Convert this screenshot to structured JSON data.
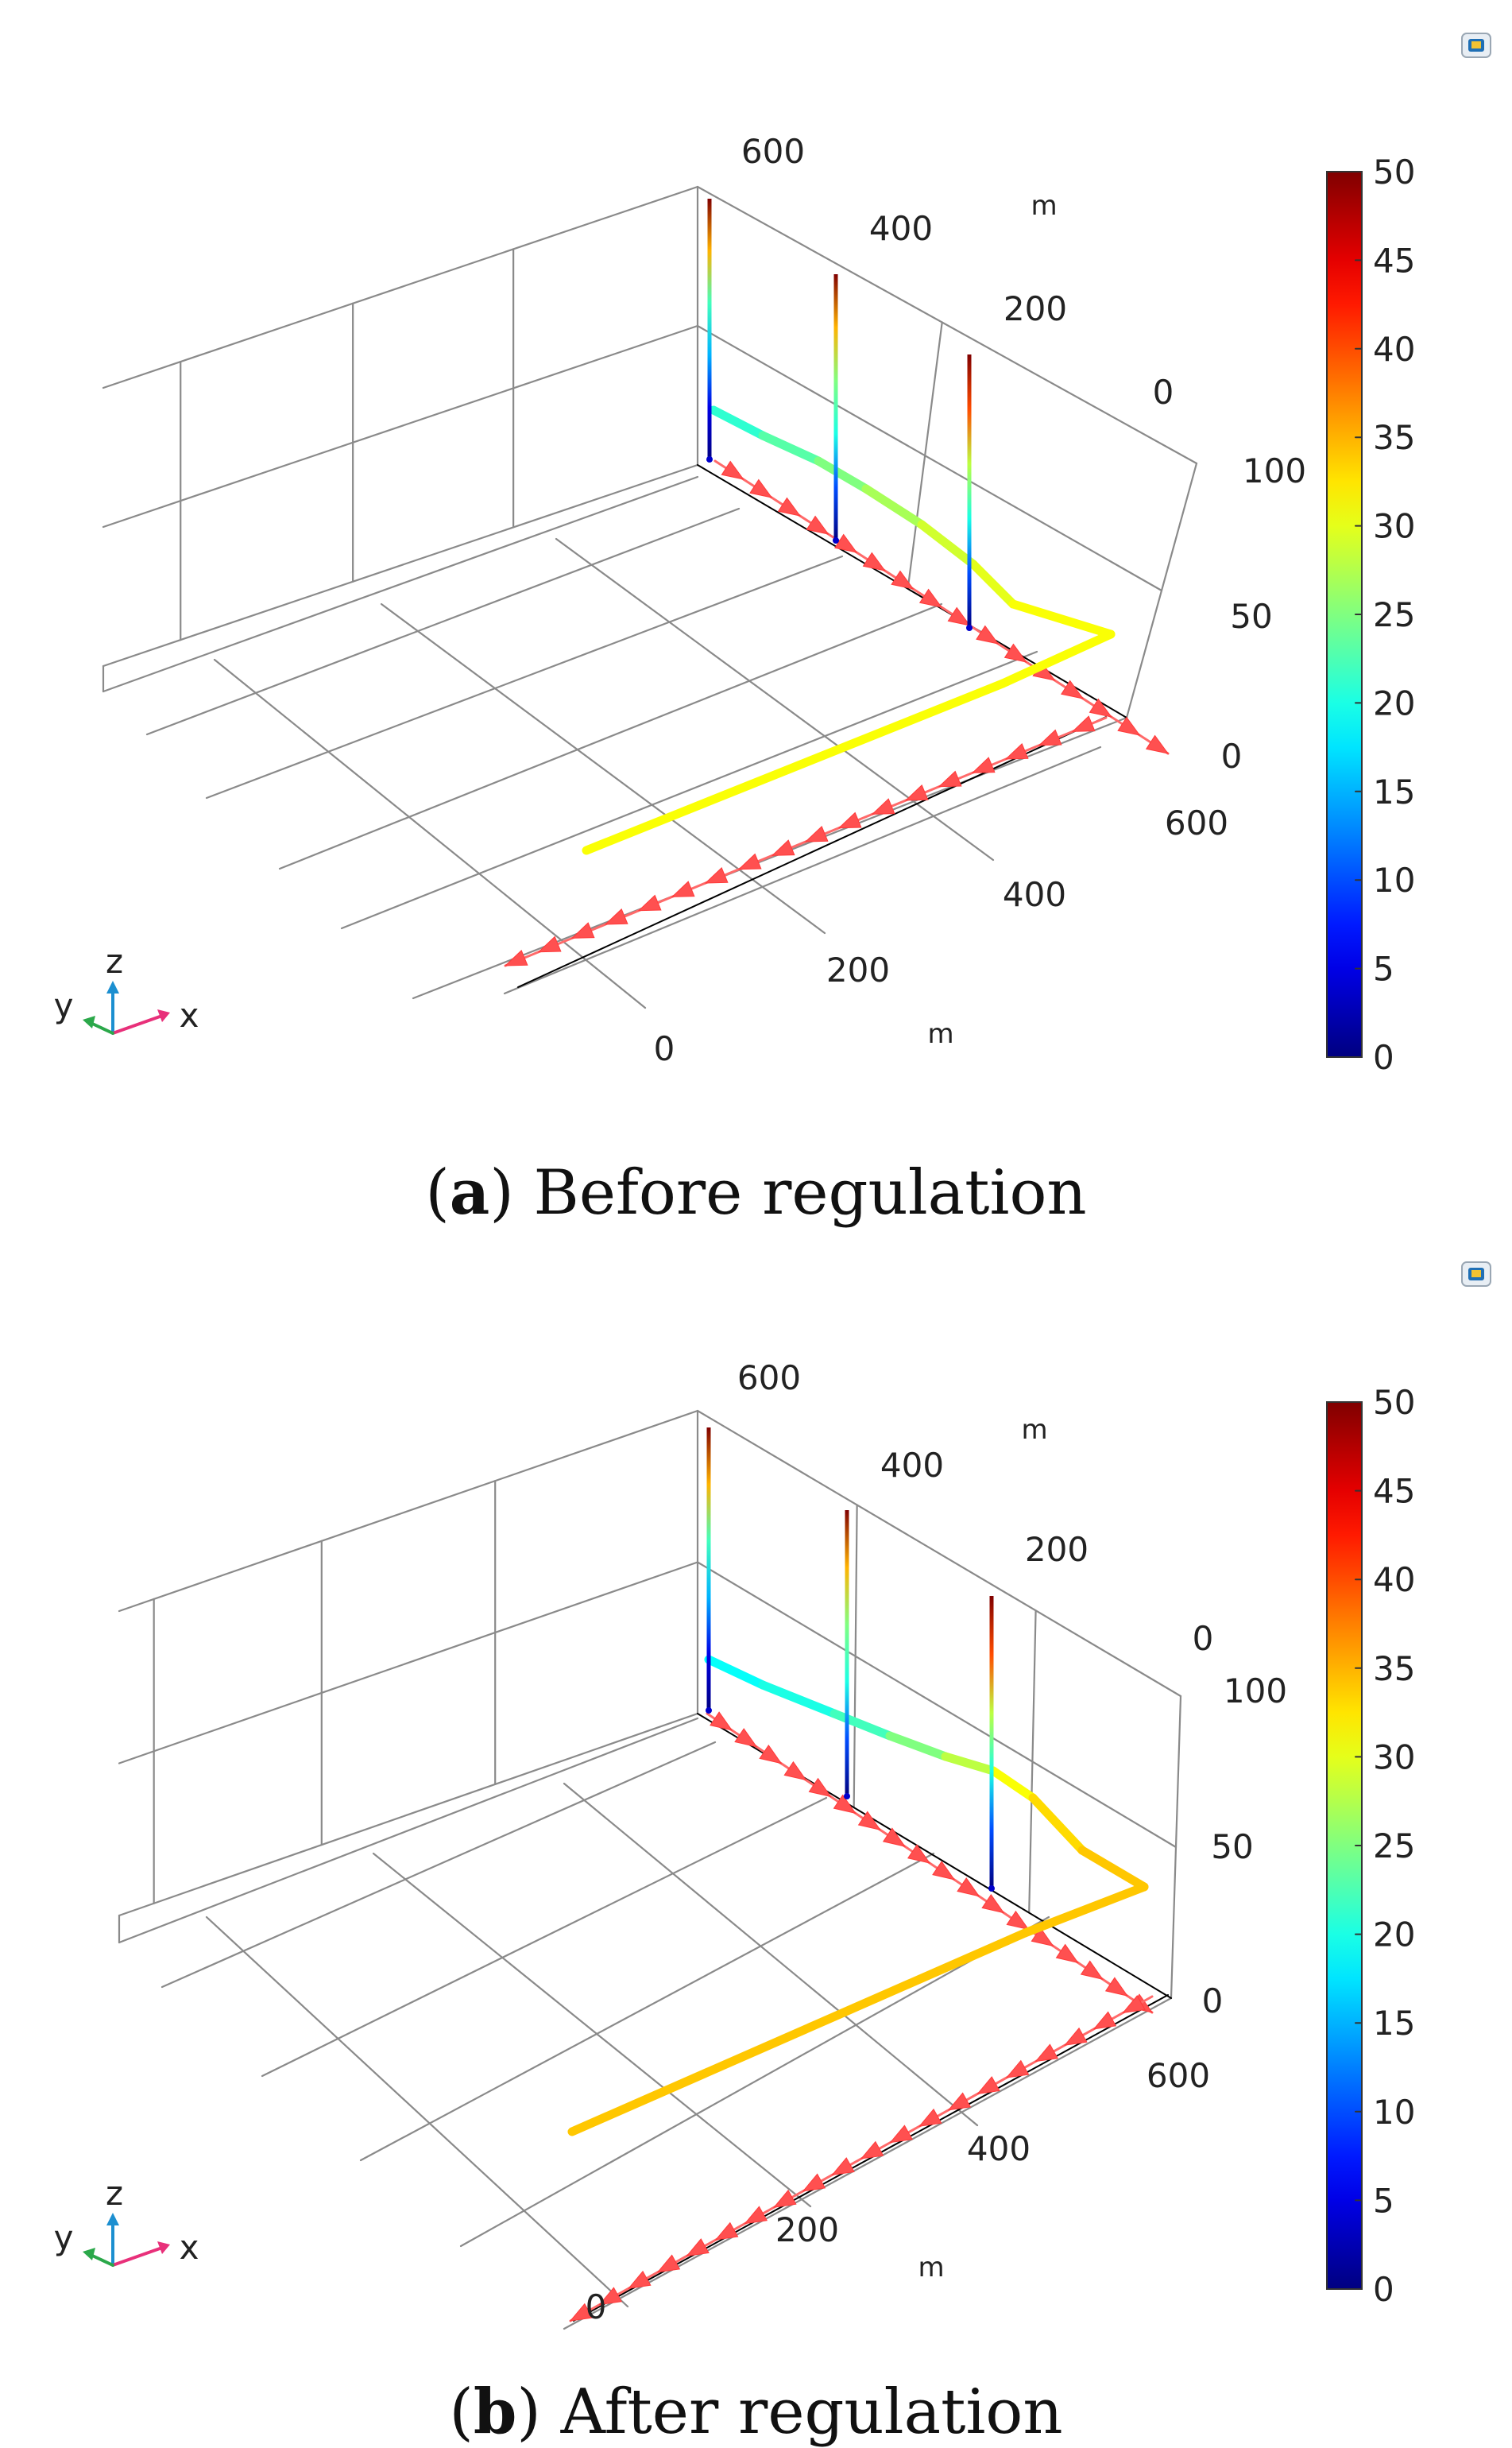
{
  "chart_data": [
    {
      "type": "3d-line",
      "id": "a",
      "caption_letter": "a",
      "caption_text": "Before regulation",
      "x_axis": {
        "ticks": [
          "0",
          "200",
          "400",
          "600"
        ],
        "unit": "m"
      },
      "y_axis": {
        "ticks": [
          "600",
          "400",
          "200",
          "0"
        ],
        "unit": "m"
      },
      "z_axis": {
        "ticks": [
          "0",
          "50",
          "100"
        ]
      },
      "colorbar": {
        "min": 0,
        "max": 50,
        "ticks": [
          "0",
          "5",
          "10",
          "15",
          "20",
          "25",
          "30",
          "35",
          "40",
          "45",
          "50"
        ]
      },
      "triad": {
        "x": "x",
        "y": "y",
        "z": "z"
      },
      "series": [
        {
          "kind": "main-pipe",
          "values": [
            21,
            23,
            25,
            27,
            29,
            30,
            31,
            31,
            31
          ]
        },
        {
          "kind": "vertical-well",
          "values": [
            0,
            5,
            15,
            22,
            35,
            50
          ]
        },
        {
          "kind": "vertical-well",
          "values": [
            0,
            10,
            20,
            25,
            35,
            50
          ]
        },
        {
          "kind": "vertical-well",
          "values": [
            0,
            10,
            20,
            28,
            40,
            50
          ]
        }
      ]
    },
    {
      "type": "3d-line",
      "id": "b",
      "caption_letter": "b",
      "caption_text": "After regulation",
      "x_axis": {
        "ticks": [
          "0",
          "200",
          "400",
          "600"
        ],
        "unit": "m"
      },
      "y_axis": {
        "ticks": [
          "600",
          "400",
          "200",
          "0"
        ],
        "unit": "m"
      },
      "z_axis": {
        "ticks": [
          "0",
          "50",
          "100"
        ]
      },
      "colorbar": {
        "min": 0,
        "max": 50,
        "ticks": [
          "0",
          "5",
          "10",
          "15",
          "20",
          "25",
          "30",
          "35",
          "40",
          "45",
          "50"
        ]
      },
      "triad": {
        "x": "x",
        "y": "y",
        "z": "z"
      },
      "series": [
        {
          "kind": "main-pipe",
          "values": [
            19,
            20,
            22,
            25,
            28,
            31,
            33,
            34,
            34
          ]
        },
        {
          "kind": "vertical-well",
          "values": [
            0,
            5,
            15,
            22,
            35,
            50
          ]
        },
        {
          "kind": "vertical-well",
          "values": [
            0,
            10,
            20,
            25,
            35,
            50
          ]
        },
        {
          "kind": "vertical-well",
          "values": [
            0,
            10,
            20,
            28,
            40,
            50
          ]
        }
      ]
    }
  ]
}
